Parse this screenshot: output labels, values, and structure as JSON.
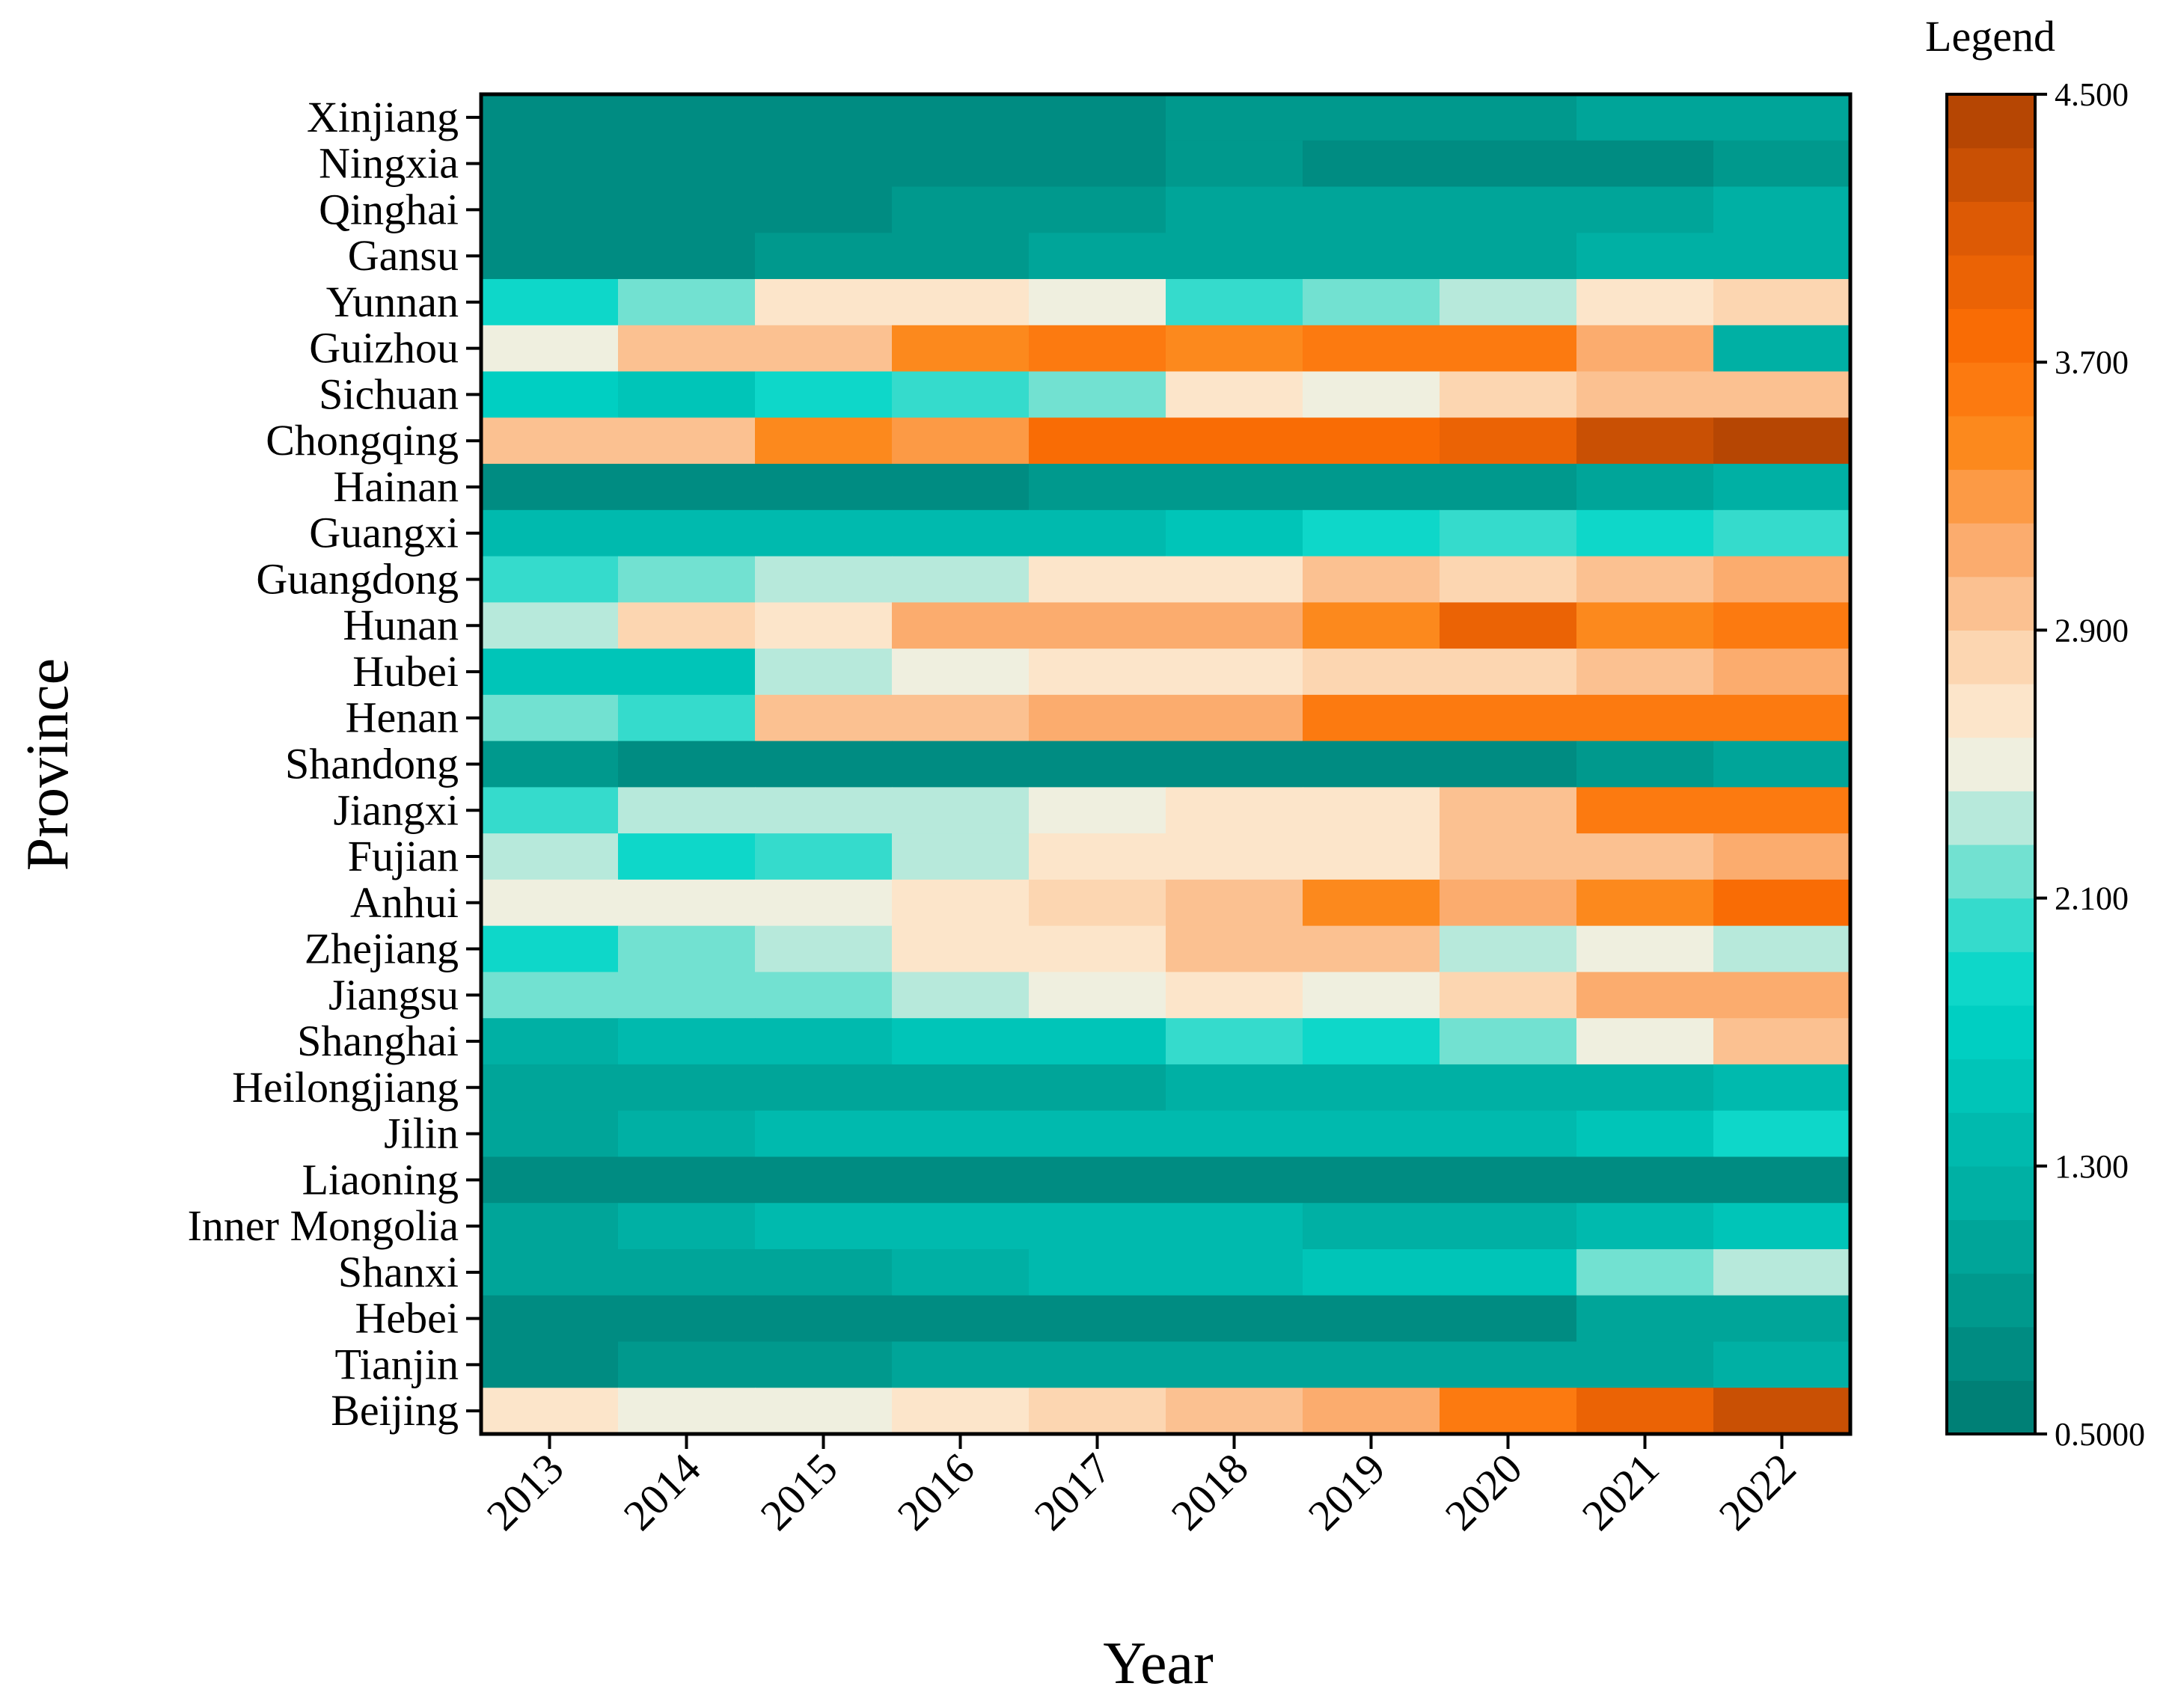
{
  "chart_data": {
    "type": "heatmap",
    "xlabel": "Year",
    "ylabel": "Province",
    "legend_title": "Legend",
    "x": [
      "2013",
      "2014",
      "2015",
      "2016",
      "2017",
      "2018",
      "2019",
      "2020",
      "2021",
      "2022"
    ],
    "y": [
      "Xinjiang",
      "Ningxia",
      "Qinghai",
      "Gansu",
      "Yunnan",
      "Guizhou",
      "Sichuan",
      "Chongqing",
      "Hainan",
      "Guangxi",
      "Guangdong",
      "Hunan",
      "Hubei",
      "Henan",
      "Shandong",
      "Jiangxi",
      "Fujian",
      "Anhui",
      "Zhejiang",
      "Jiangsu",
      "Shanghai",
      "Heilongjiang",
      "Jilin",
      "Liaoning",
      "Inner Mongolia",
      "Shanxi",
      "Hebei",
      "Tianjin",
      "Beijing"
    ],
    "values": [
      [
        0.7,
        0.7,
        0.7,
        0.7,
        0.8,
        0.9,
        0.9,
        0.9,
        1.0,
        1.1
      ],
      [
        0.8,
        0.8,
        0.8,
        0.8,
        0.8,
        0.9,
        0.7,
        0.7,
        0.8,
        0.9
      ],
      [
        0.8,
        0.8,
        0.8,
        0.9,
        0.9,
        1.0,
        1.0,
        1.1,
        1.1,
        1.2
      ],
      [
        0.8,
        0.8,
        0.9,
        0.9,
        1.0,
        1.0,
        1.1,
        1.1,
        1.2,
        1.2
      ],
      [
        1.9,
        2.2,
        2.6,
        2.6,
        2.5,
        2.0,
        2.2,
        2.3,
        2.6,
        2.8
      ],
      [
        2.5,
        2.9,
        3.0,
        3.5,
        3.6,
        3.5,
        3.6,
        3.6,
        3.2,
        1.2
      ],
      [
        1.7,
        1.6,
        1.9,
        2.0,
        2.2,
        2.6,
        2.5,
        2.8,
        2.9,
        3.0
      ],
      [
        2.9,
        2.9,
        3.5,
        3.3,
        3.7,
        3.7,
        3.8,
        4.0,
        4.2,
        4.4
      ],
      [
        0.7,
        0.7,
        0.7,
        0.7,
        0.9,
        0.9,
        0.9,
        0.9,
        1.0,
        1.2
      ],
      [
        1.3,
        1.3,
        1.4,
        1.4,
        1.4,
        1.6,
        1.8,
        2.0,
        1.8,
        2.0
      ],
      [
        2.0,
        2.2,
        2.3,
        2.3,
        2.6,
        2.6,
        2.9,
        2.8,
        3.0,
        3.1
      ],
      [
        2.3,
        2.8,
        2.6,
        3.1,
        3.2,
        3.2,
        3.5,
        4.0,
        3.5,
        3.6
      ],
      [
        1.6,
        1.6,
        2.3,
        2.5,
        2.6,
        2.7,
        2.8,
        2.8,
        3.0,
        3.2
      ],
      [
        2.2,
        2.0,
        2.9,
        3.0,
        3.2,
        3.2,
        3.6,
        3.6,
        3.6,
        3.6
      ],
      [
        0.9,
        0.8,
        0.8,
        0.8,
        0.8,
        0.8,
        0.8,
        0.8,
        0.9,
        1.1
      ],
      [
        2.0,
        2.3,
        2.3,
        2.3,
        2.5,
        2.6,
        2.7,
        3.0,
        3.6,
        3.6
      ],
      [
        2.4,
        1.8,
        2.0,
        2.3,
        2.6,
        2.7,
        2.7,
        2.9,
        3.0,
        3.2
      ],
      [
        2.5,
        2.5,
        2.5,
        2.7,
        2.8,
        3.0,
        3.4,
        3.2,
        3.5,
        3.8
      ],
      [
        1.8,
        2.2,
        2.3,
        2.6,
        2.6,
        3.0,
        3.0,
        2.3,
        2.5,
        2.4
      ],
      [
        2.2,
        2.2,
        2.2,
        2.3,
        2.5,
        2.6,
        2.5,
        2.8,
        3.1,
        3.2
      ],
      [
        1.2,
        1.3,
        1.3,
        1.5,
        1.6,
        2.0,
        1.8,
        2.2,
        2.5,
        2.9
      ],
      [
        1.0,
        1.0,
        1.0,
        1.1,
        1.1,
        1.2,
        1.2,
        1.2,
        1.2,
        1.3
      ],
      [
        1.1,
        1.2,
        1.3,
        1.3,
        1.4,
        1.3,
        1.3,
        1.4,
        1.5,
        1.8
      ],
      [
        0.7,
        0.7,
        0.7,
        0.7,
        0.7,
        0.7,
        0.7,
        0.7,
        0.7,
        0.7
      ],
      [
        1.0,
        1.2,
        1.3,
        1.3,
        1.3,
        1.3,
        1.2,
        1.2,
        1.4,
        1.6
      ],
      [
        1.1,
        1.1,
        1.1,
        1.2,
        1.4,
        1.4,
        1.6,
        1.6,
        2.2,
        2.3
      ],
      [
        0.7,
        0.8,
        0.8,
        0.8,
        0.8,
        0.8,
        0.8,
        0.8,
        1.0,
        1.0
      ],
      [
        0.8,
        0.9,
        0.9,
        1.0,
        1.0,
        1.0,
        1.0,
        1.1,
        1.1,
        1.2
      ],
      [
        2.6,
        2.5,
        2.5,
        2.7,
        2.8,
        2.9,
        3.2,
        3.6,
        4.0,
        4.3
      ]
    ],
    "colorbar": {
      "range": [
        0.5,
        4.5
      ],
      "ticks": [
        "4.500",
        "3.700",
        "2.900",
        "2.100",
        "1.300",
        "0.5000"
      ],
      "tick_values": [
        4.5,
        3.7,
        2.9,
        2.1,
        1.3,
        0.5
      ],
      "bands": 25,
      "stops": [
        {
          "v": 0.5,
          "c": "#007a70"
        },
        {
          "v": 1.1,
          "c": "#00a89c"
        },
        {
          "v": 1.8,
          "c": "#00d6c8"
        },
        {
          "v": 2.05,
          "c": "#3cdccc"
        },
        {
          "v": 2.25,
          "c": "#8fe3d4"
        },
        {
          "v": 2.45,
          "c": "#e8f1e4"
        },
        {
          "v": 2.6,
          "c": "#fcebd4"
        },
        {
          "v": 2.85,
          "c": "#fcd3ac"
        },
        {
          "v": 3.1,
          "c": "#fbb078"
        },
        {
          "v": 3.45,
          "c": "#fc8a1e"
        },
        {
          "v": 3.75,
          "c": "#fc6e05"
        },
        {
          "v": 4.1,
          "c": "#dd5a05"
        },
        {
          "v": 4.5,
          "c": "#ac4103"
        }
      ]
    },
    "grid": false
  }
}
